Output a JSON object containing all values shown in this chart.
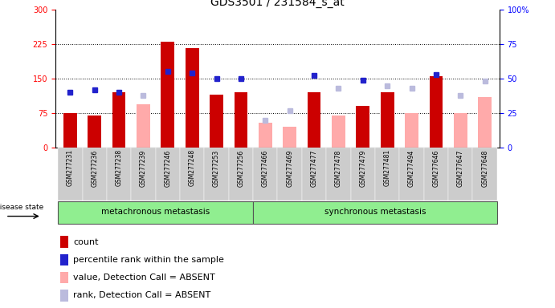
{
  "title": "GDS3501 / 231584_s_at",
  "samples": [
    "GSM277231",
    "GSM277236",
    "GSM277238",
    "GSM277239",
    "GSM277246",
    "GSM277248",
    "GSM277253",
    "GSM277256",
    "GSM277466",
    "GSM277469",
    "GSM277477",
    "GSM277478",
    "GSM277479",
    "GSM277481",
    "GSM277494",
    "GSM277646",
    "GSM277647",
    "GSM277648"
  ],
  "count": [
    75,
    70,
    120,
    null,
    230,
    215,
    115,
    120,
    null,
    null,
    120,
    null,
    90,
    120,
    null,
    155,
    null,
    null
  ],
  "percentile_rank": [
    40,
    42,
    40,
    null,
    55,
    54,
    50,
    50,
    null,
    null,
    52,
    null,
    49,
    null,
    null,
    53,
    null,
    null
  ],
  "value_absent": [
    null,
    null,
    null,
    95,
    null,
    null,
    null,
    null,
    55,
    45,
    null,
    70,
    null,
    null,
    75,
    null,
    75,
    110
  ],
  "rank_absent": [
    null,
    null,
    null,
    38,
    null,
    null,
    null,
    null,
    20,
    27,
    null,
    43,
    null,
    45,
    43,
    null,
    38,
    48
  ],
  "group1_indices": [
    0,
    1,
    2,
    3,
    4,
    5,
    6,
    7
  ],
  "group2_indices": [
    8,
    9,
    10,
    11,
    12,
    13,
    14,
    15,
    16,
    17
  ],
  "group1_label": "metachronous metastasis",
  "group2_label": "synchronous metastasis",
  "disease_state_label": "disease state",
  "ylim_left": [
    0,
    300
  ],
  "ylim_right": [
    0,
    100
  ],
  "yticks_left": [
    0,
    75,
    150,
    225,
    300
  ],
  "yticks_right": [
    0,
    25,
    50,
    75,
    100
  ],
  "ytick_labels_right": [
    "0",
    "25",
    "50",
    "75",
    "100%"
  ],
  "count_color": "#cc0000",
  "rank_color": "#2222cc",
  "value_absent_color": "#ffaaaa",
  "rank_absent_color": "#bbbbdd",
  "title_fontsize": 10,
  "tick_fontsize": 7,
  "label_fontsize": 6,
  "legend_fontsize": 8
}
